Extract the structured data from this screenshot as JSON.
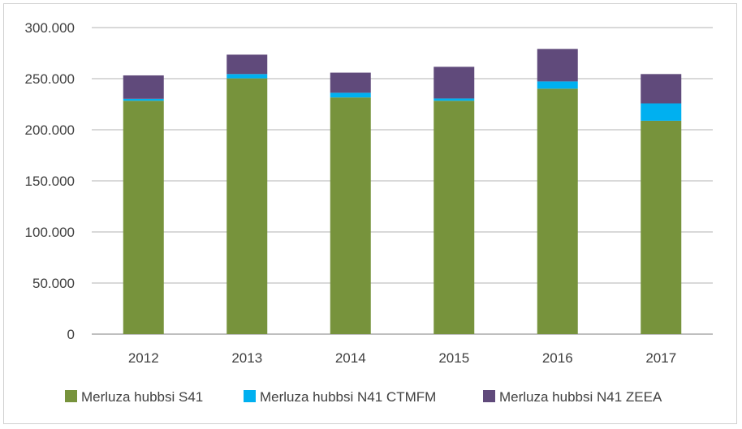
{
  "chart_data": {
    "type": "bar",
    "stacked": true,
    "categories": [
      "2012",
      "2013",
      "2014",
      "2015",
      "2016",
      "2017"
    ],
    "series": [
      {
        "name": "Merluza hubbsi S41",
        "color": "#77933c",
        "values": [
          228400,
          250300,
          231600,
          228400,
          240200,
          208800
        ]
      },
      {
        "name": "Merluza hubbsi N41 CTMFM",
        "color": "#00b0f0",
        "values": [
          1900,
          4200,
          4600,
          2200,
          7100,
          17000
        ]
      },
      {
        "name": "Merluza hubbsi N41 ZEEA",
        "color": "#604a7b",
        "values": [
          22900,
          19000,
          19700,
          31000,
          31800,
          28700
        ]
      }
    ],
    "yticks": [
      "0",
      "50.000",
      "100.000",
      "150.000",
      "200.000",
      "250.000",
      "300.000"
    ],
    "ylim": [
      0,
      300000
    ],
    "grid": true,
    "legend": "bottom",
    "title": "",
    "xlabel": "",
    "ylabel": ""
  }
}
